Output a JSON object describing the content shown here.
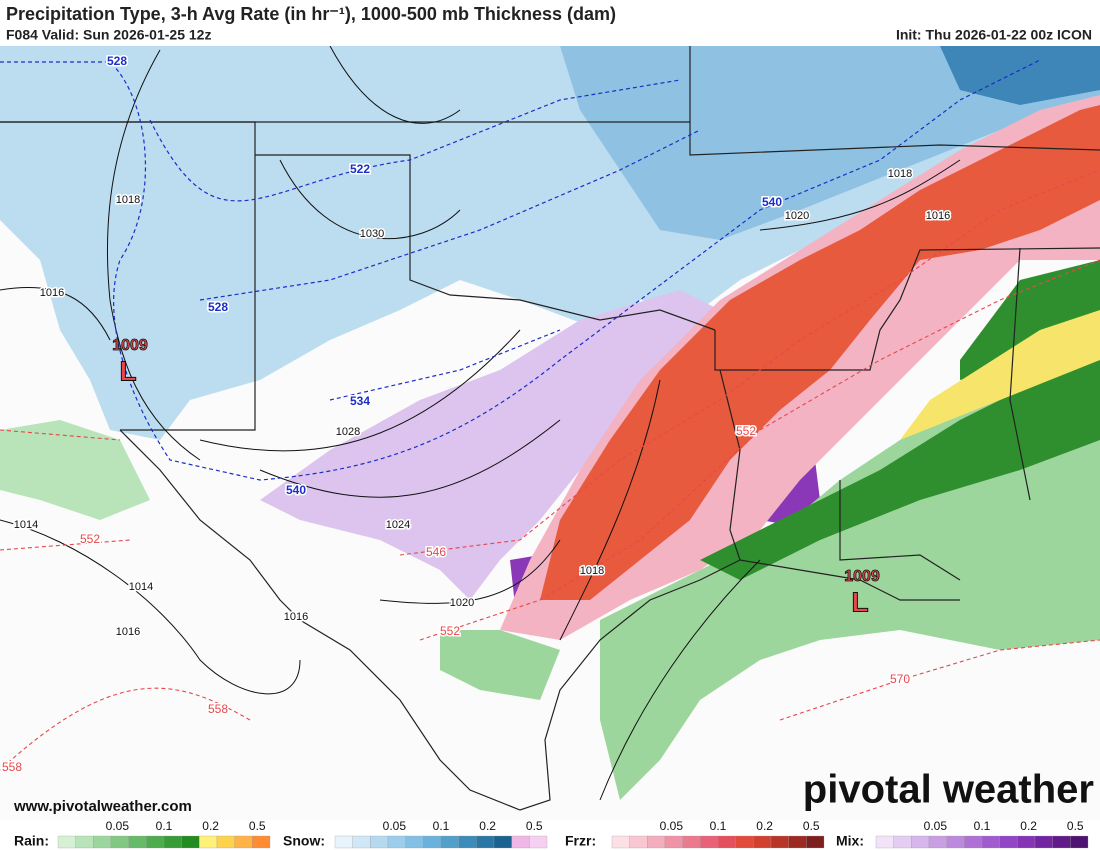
{
  "header": {
    "title": "Precipitation Type, 3-h Avg Rate (in hr⁻¹), 1000-500 mb Thickness (dam)",
    "valid": "F084 Valid: Sun 2026-01-25 12z",
    "init": "Init: Thu 2026-01-22 00z ICON"
  },
  "map": {
    "pressure_labels": [
      1018,
      1030,
      1016,
      1028,
      1024,
      1014,
      1014,
      1016,
      1016,
      1020,
      1018,
      1018,
      1020,
      1016
    ],
    "thickness_labels_cold": [
      528,
      522,
      528,
      534,
      540,
      540
    ],
    "thickness_labels_warm": [
      552,
      546,
      552,
      552,
      558,
      558,
      570
    ],
    "lows": [
      {
        "pressure": 1009,
        "letter": "L"
      },
      {
        "pressure": 1009,
        "letter": "L"
      }
    ]
  },
  "footer": {
    "website": "www.pivotalweather.com",
    "logo": "pivotal weather"
  },
  "legend": [
    {
      "name": "Rain:",
      "ticks": [
        0.05,
        0.1,
        0.2,
        0.5
      ],
      "colors": [
        "#d6f0d6",
        "#b9e3b9",
        "#9dd69d",
        "#82c882",
        "#67ba67",
        "#4eab4e",
        "#379c37",
        "#228b22",
        "#fff07a",
        "#ffd24d",
        "#ffb347",
        "#ff8c33"
      ]
    },
    {
      "name": "Snow:",
      "ticks": [
        0.05,
        0.1,
        0.2,
        0.5
      ],
      "colors": [
        "#e8f4fb",
        "#cfe7f6",
        "#b5daf0",
        "#9ccdea",
        "#83c0e3",
        "#6ab2dc",
        "#529fcc",
        "#3b8bbb",
        "#2877a6",
        "#1a6290",
        "#f0b6e6",
        "#f5d0f0"
      ]
    },
    {
      "name": "Frzr:",
      "ticks": [
        0.05,
        0.1,
        0.2,
        0.5
      ],
      "colors": [
        "#fbe0e6",
        "#f8c7d2",
        "#f4adbd",
        "#f093a6",
        "#ec7a8f",
        "#e86177",
        "#e5505d",
        "#e24a3c",
        "#d2402f",
        "#b83527",
        "#9c2a22",
        "#7d1f1c"
      ]
    },
    {
      "name": "Mix:",
      "ticks": [
        0.05,
        0.1,
        0.2,
        0.5
      ],
      "colors": [
        "#f1e3f8",
        "#e4cdf2",
        "#d6b6eb",
        "#c99fe4",
        "#bb89dd",
        "#ae72d6",
        "#a05ccf",
        "#9245c4",
        "#8434b4",
        "#7325a1",
        "#611a8a",
        "#4e1270"
      ]
    }
  ]
}
